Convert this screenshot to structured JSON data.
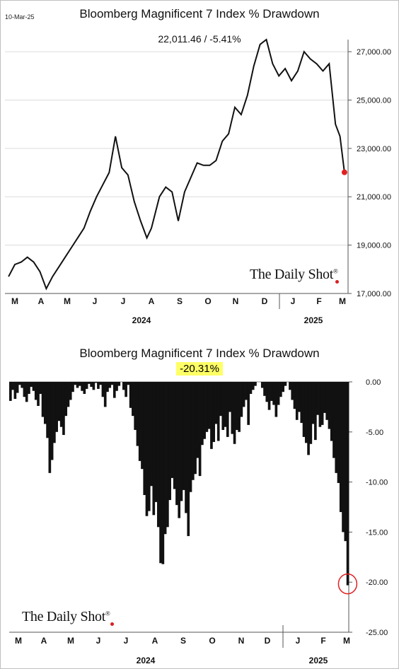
{
  "top": {
    "date": "10-Mar-25",
    "title": "Bloomberg Magnificent 7 Index % Drawdown",
    "subtitle": "22,011.46  /  -5.41%",
    "brand": "The Daily Shot",
    "brand_mark": "®"
  },
  "bottom": {
    "title": "Bloomberg Magnificent 7 Index % Drawdown",
    "highlight": "-20.31%",
    "brand": "The Daily Shot",
    "brand_mark": "®"
  },
  "colors": {
    "line": "#111111",
    "marker": "#e02020",
    "highlight_bg": "#ffff66"
  },
  "chart_data": [
    {
      "type": "line",
      "title": "Bloomberg Magnificent 7 Index % Drawdown",
      "y_ticks": [
        "27,000.00",
        "25,000.00",
        "23,000.00",
        "21,000.00",
        "19,000.00",
        "17,000.00"
      ],
      "ylim": [
        17000,
        27500
      ],
      "x_month_labels": [
        "M",
        "A",
        "M",
        "J",
        "J",
        "A",
        "S",
        "O",
        "N",
        "D",
        "J",
        "F",
        "M"
      ],
      "x_year_labels": [
        "2024",
        "2025"
      ],
      "series": [
        {
          "x": [
            "2024-03-01",
            "2024-03-08",
            "2024-03-15",
            "2024-03-22",
            "2024-03-29",
            "2024-04-05",
            "2024-04-12",
            "2024-04-19",
            "2024-04-26",
            "2024-05-03",
            "2024-05-10",
            "2024-05-17",
            "2024-05-24",
            "2024-05-31",
            "2024-06-07",
            "2024-06-14",
            "2024-06-21",
            "2024-06-28",
            "2024-07-05",
            "2024-07-12",
            "2024-07-19",
            "2024-07-26",
            "2024-08-02",
            "2024-08-07",
            "2024-08-16",
            "2024-08-23",
            "2024-08-30",
            "2024-09-06",
            "2024-09-13",
            "2024-09-20",
            "2024-09-27",
            "2024-10-04",
            "2024-10-11",
            "2024-10-18",
            "2024-10-25",
            "2024-11-01",
            "2024-11-08",
            "2024-11-15",
            "2024-11-22",
            "2024-11-29",
            "2024-12-06",
            "2024-12-13",
            "2024-12-20",
            "2024-12-27",
            "2025-01-03",
            "2025-01-10",
            "2025-01-17",
            "2025-01-24",
            "2025-01-31",
            "2025-02-07",
            "2025-02-14",
            "2025-02-21",
            "2025-02-28",
            "2025-03-05",
            "2025-03-10"
          ],
          "y": [
            17700,
            18200,
            18300,
            18500,
            18300,
            17900,
            17200,
            17700,
            18100,
            18500,
            18900,
            19300,
            19700,
            20400,
            21000,
            21500,
            22000,
            23500,
            22200,
            21900,
            20800,
            20000,
            19300,
            19700,
            21000,
            21400,
            21200,
            20000,
            21200,
            21800,
            22400,
            22300,
            22300,
            22500,
            23300,
            23600,
            24700,
            24400,
            25200,
            26400,
            27300,
            27500,
            26500,
            26000,
            26300,
            25800,
            26200,
            27000,
            26700,
            26500,
            26200,
            26500,
            24000,
            23500,
            22011.46
          ],
          "last_value": 22011.46
        }
      ]
    },
    {
      "type": "bar",
      "title": "Bloomberg Magnificent 7 Index % Drawdown",
      "y_ticks": [
        "0.00",
        "-5.00",
        "-10.00",
        "-15.00",
        "-20.00",
        "-25.00"
      ],
      "ylim": [
        -25,
        0
      ],
      "x_month_labels": [
        "M",
        "A",
        "M",
        "J",
        "J",
        "A",
        "S",
        "O",
        "N",
        "D",
        "J",
        "F",
        "M"
      ],
      "x_year_labels": [
        "2024",
        "2025"
      ],
      "values": [
        -1.9,
        -0.8,
        -1.7,
        -1.1,
        -0.3,
        -0.6,
        -1.5,
        -2.0,
        -1.2,
        -0.5,
        -0.9,
        -1.8,
        -2.4,
        -1.2,
        -3.5,
        -4.2,
        -5.6,
        -9.1,
        -7.8,
        -6.1,
        -5.0,
        -3.9,
        -4.5,
        -5.3,
        -3.4,
        -2.5,
        -1.8,
        -1.0,
        -0.3,
        -0.6,
        -0.4,
        -0.9,
        -1.2,
        -0.7,
        -0.2,
        -0.5,
        -0.8,
        -0.1,
        -0.7,
        -0.3,
        -1.5,
        -2.5,
        -1.0,
        -0.6,
        -0.3,
        -1.6,
        -0.9,
        -0.4,
        0,
        -0.8,
        -1.5,
        -0.3,
        -2.6,
        -3.4,
        -4.8,
        -6.4,
        -7.9,
        -8.7,
        -11.3,
        -13.4,
        -12.9,
        -10.4,
        -13.3,
        -12.0,
        -14.5,
        -18.1,
        -18.2,
        -15.2,
        -14.5,
        -11.8,
        -9.6,
        -10.7,
        -12.3,
        -13.6,
        -11.9,
        -10.8,
        -13.1,
        -15.4,
        -11.0,
        -9.8,
        -9.2,
        -7.6,
        -9.4,
        -6.3,
        -5.7,
        -5.0,
        -4.7,
        -6.7,
        -6.0,
        -4.2,
        -5.9,
        -3.4,
        -4.8,
        -4.5,
        -5.5,
        -3.0,
        -5.2,
        -6.2,
        -4.8,
        -5.0,
        -3.5,
        -2.5,
        -1.8,
        -4.3,
        -1.2,
        -0.8,
        -0.4,
        0,
        0,
        -0.6,
        -1.4,
        -2.0,
        -2.8,
        -1.9,
        -2.3,
        -3.5,
        -2.3,
        -1.5,
        -1.0,
        -0.4,
        0,
        -0.8,
        -1.8,
        -2.7,
        -3.8,
        -3.0,
        -4.1,
        -5.5,
        -6.1,
        -7.3,
        -6.2,
        -4.2,
        -5.8,
        -3.3,
        -4.5,
        -4.3,
        -3.1,
        -3.8,
        -4.7,
        -5.9,
        -7.6,
        -9.1,
        -10.1,
        -13.0,
        -15.0,
        -15.9,
        -20.31
      ],
      "last_value": -20.31
    }
  ]
}
